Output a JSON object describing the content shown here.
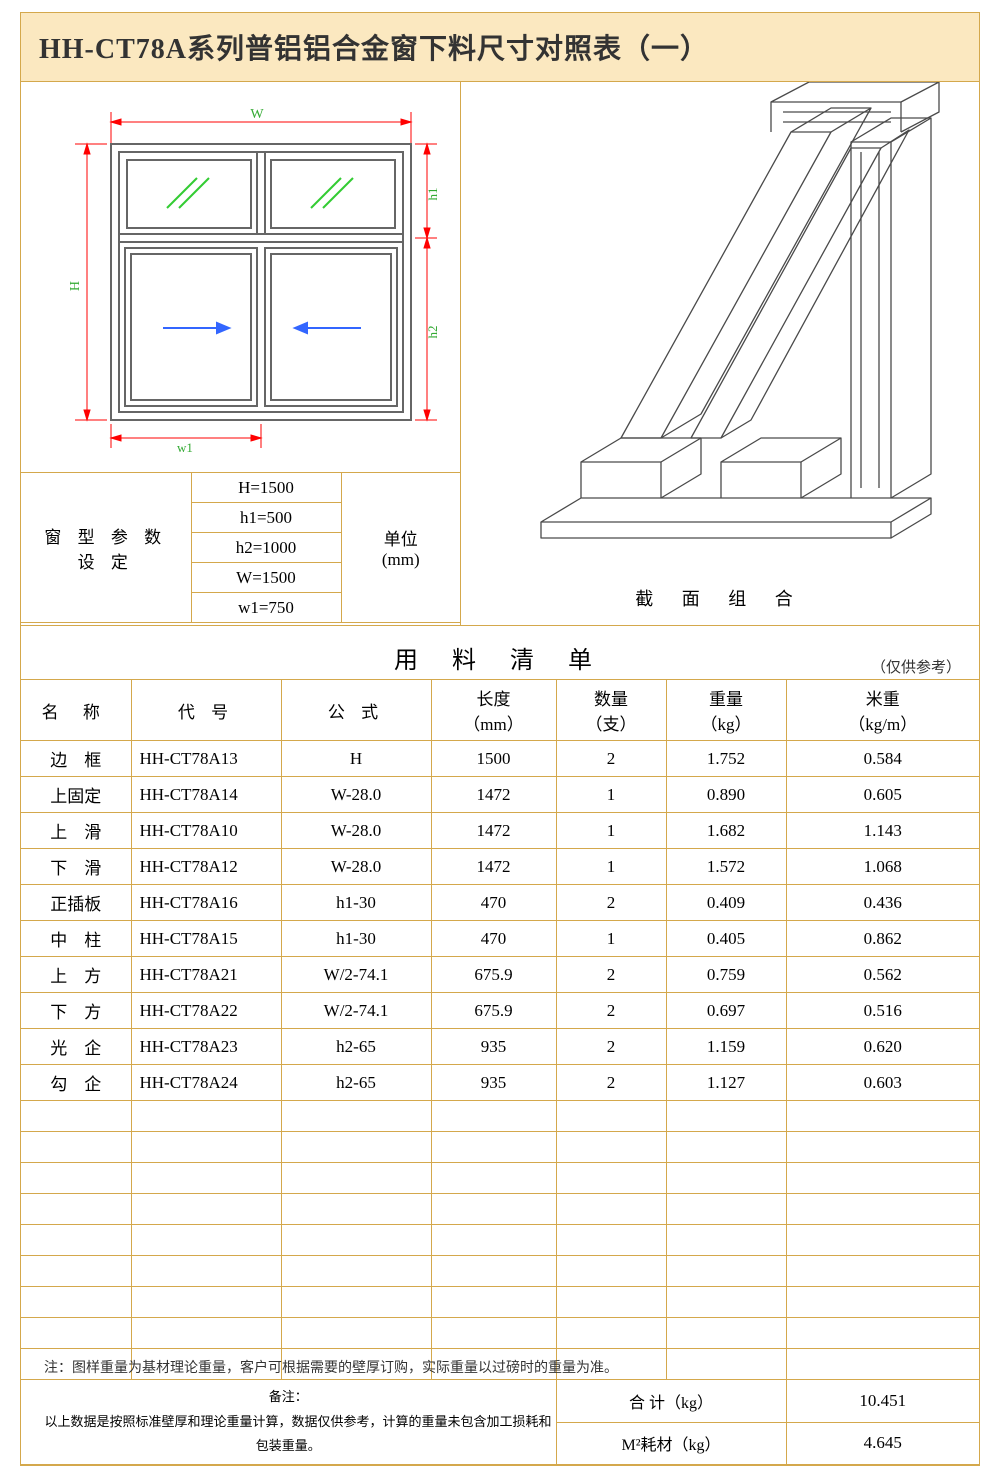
{
  "title": "HH-CT78A系列普铝铝合金窗下料尺寸对照表（一）",
  "colors": {
    "border": "#d4a84c",
    "title_bg": "#fbe8c0",
    "dim_line": "#ff0000",
    "glass_hatch": "#33cc33",
    "arrow_blue": "#3366ff",
    "frame": "#666666",
    "iso_line": "#4a4a4a"
  },
  "diagram": {
    "labels": {
      "W": "W",
      "H": "H",
      "h1": "h1",
      "h2": "h2",
      "w1": "w1"
    }
  },
  "params": {
    "label": "窗 型 参 数 设 定",
    "unit_label": "单位",
    "unit_value": "(mm)",
    "rows": [
      "H=1500",
      "h1=500",
      "h2=1000",
      "W=1500",
      "w1=750"
    ]
  },
  "section_caption": "截 面 组 合",
  "list_title": "用 料 清 单",
  "ref_note": "（仅供参考）",
  "table": {
    "headers": {
      "name": "名 称",
      "code": "代 号",
      "formula": "公 式",
      "length": "长度",
      "length_unit": "（mm）",
      "qty": "数量",
      "qty_unit": "（支）",
      "weight": "重量",
      "weight_unit": "（kg）",
      "mweight": "米重",
      "mweight_unit": "（kg/m）"
    },
    "rows": [
      {
        "name": "边　框",
        "code": "HH-CT78A13",
        "formula": "H",
        "length": "1500",
        "qty": "2",
        "weight": "1.752",
        "mweight": "0.584"
      },
      {
        "name": "上固定",
        "code": "HH-CT78A14",
        "formula": "W-28.0",
        "length": "1472",
        "qty": "1",
        "weight": "0.890",
        "mweight": "0.605"
      },
      {
        "name": "上　滑",
        "code": "HH-CT78A10",
        "formula": "W-28.0",
        "length": "1472",
        "qty": "1",
        "weight": "1.682",
        "mweight": "1.143"
      },
      {
        "name": "下　滑",
        "code": "HH-CT78A12",
        "formula": "W-28.0",
        "length": "1472",
        "qty": "1",
        "weight": "1.572",
        "mweight": "1.068"
      },
      {
        "name": "正插板",
        "code": "HH-CT78A16",
        "formula": "h1-30",
        "length": "470",
        "qty": "2",
        "weight": "0.409",
        "mweight": "0.436"
      },
      {
        "name": "中　柱",
        "code": "HH-CT78A15",
        "formula": "h1-30",
        "length": "470",
        "qty": "1",
        "weight": "0.405",
        "mweight": "0.862"
      },
      {
        "name": "上　方",
        "code": "HH-CT78A21",
        "formula": "W/2-74.1",
        "length": "675.9",
        "qty": "2",
        "weight": "0.759",
        "mweight": "0.562"
      },
      {
        "name": "下　方",
        "code": "HH-CT78A22",
        "formula": "W/2-74.1",
        "length": "675.9",
        "qty": "2",
        "weight": "0.697",
        "mweight": "0.516"
      },
      {
        "name": "光　企",
        "code": "HH-CT78A23",
        "formula": "h2-65",
        "length": "935",
        "qty": "2",
        "weight": "1.159",
        "mweight": "0.620"
      },
      {
        "name": "勾　企",
        "code": "HH-CT78A24",
        "formula": "h2-65",
        "length": "935",
        "qty": "2",
        "weight": "1.127",
        "mweight": "0.603"
      }
    ],
    "empty_rows": 9
  },
  "remark": {
    "label": "备注：",
    "text": "以上数据是按照标准壁厚和理论重量计算，数据仅供参考，计算的重量未包含加工损耗和包装重量。"
  },
  "totals": {
    "sum_label": "合 计（kg）",
    "sum_value": "10.451",
    "m2_label": "M²耗材（kg）",
    "m2_value": "4.645"
  },
  "footer_note": "注：图样重量为基材理论重量，客户可根据需要的壁厚订购，实际重量以过磅时的重量为准。",
  "col_widths": [
    "110",
    "140",
    "150",
    "125",
    "110",
    "120",
    "auto"
  ]
}
